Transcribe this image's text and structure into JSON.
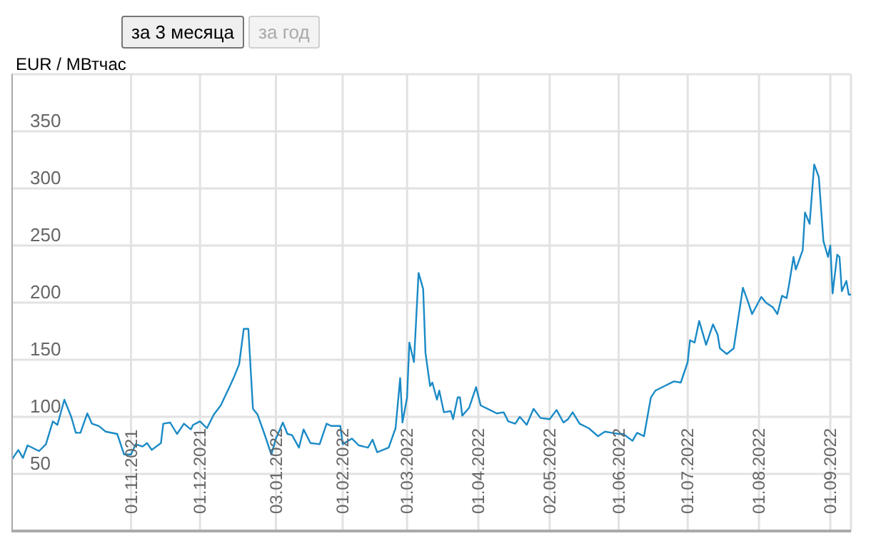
{
  "chart_data": {
    "type": "line",
    "ylabel": "EUR / МВтчас",
    "annotations": [
      "за 3 месяца",
      "за год"
    ],
    "x": [
      "2021-09-10",
      "2021-09-13",
      "2021-09-15",
      "2021-09-17",
      "2021-09-22",
      "2021-09-25",
      "2021-09-28",
      "2021-09-30",
      "2021-10-03",
      "2021-10-06",
      "2021-10-08",
      "2021-10-10",
      "2021-10-13",
      "2021-10-15",
      "2021-10-18",
      "2021-10-21",
      "2021-10-26",
      "2021-10-29",
      "2021-11-01",
      "2021-11-03",
      "2021-11-06",
      "2021-11-08",
      "2021-11-10",
      "2021-11-14",
      "2021-11-15",
      "2021-11-18",
      "2021-11-21",
      "2021-11-24",
      "2021-11-27",
      "2021-11-28",
      "2021-12-01",
      "2021-12-04",
      "2021-12-07",
      "2021-12-10",
      "2021-12-14",
      "2021-12-16",
      "2021-12-18",
      "2021-12-20",
      "2021-12-22",
      "2021-12-24",
      "2021-12-26",
      "2021-12-29",
      "2022-01-01",
      "2022-01-03",
      "2022-01-06",
      "2022-01-08",
      "2022-01-10",
      "2022-01-13",
      "2022-01-15",
      "2022-01-18",
      "2022-01-22",
      "2022-01-25",
      "2022-01-27",
      "2022-01-31",
      "2022-02-01",
      "2022-02-05",
      "2022-02-08",
      "2022-02-12",
      "2022-02-14",
      "2022-02-16",
      "2022-02-21",
      "2022-02-24",
      "2022-02-26",
      "2022-02-27",
      "2022-03-01",
      "2022-03-02",
      "2022-03-04",
      "2022-03-06",
      "2022-03-08",
      "2022-03-09",
      "2022-03-11",
      "2022-03-12",
      "2022-03-14",
      "2022-03-15",
      "2022-03-17",
      "2022-03-20",
      "2022-03-21",
      "2022-03-23",
      "2022-03-24",
      "2022-03-25",
      "2022-03-28",
      "2022-03-31",
      "2022-04-02",
      "2022-04-06",
      "2022-04-09",
      "2022-04-12",
      "2022-04-14",
      "2022-04-17",
      "2022-04-19",
      "2022-04-22",
      "2022-04-25",
      "2022-04-28",
      "2022-05-02",
      "2022-05-05",
      "2022-05-08",
      "2022-05-10",
      "2022-05-12",
      "2022-05-15",
      "2022-05-19",
      "2022-05-23",
      "2022-05-26",
      "2022-05-29",
      "2022-06-01",
      "2022-06-03",
      "2022-06-07",
      "2022-06-09",
      "2022-06-12",
      "2022-06-15",
      "2022-06-17",
      "2022-06-21",
      "2022-06-25",
      "2022-06-28",
      "2022-07-01",
      "2022-07-02",
      "2022-07-04",
      "2022-07-06",
      "2022-07-09",
      "2022-07-12",
      "2022-07-14",
      "2022-07-15",
      "2022-07-18",
      "2022-07-21",
      "2022-07-25",
      "2022-07-27",
      "2022-07-29",
      "2022-08-02",
      "2022-08-04",
      "2022-08-07",
      "2022-08-09",
      "2022-08-11",
      "2022-08-13",
      "2022-08-14",
      "2022-08-16",
      "2022-08-17",
      "2022-08-20",
      "2022-08-21",
      "2022-08-23",
      "2022-08-25",
      "2022-08-27",
      "2022-08-29",
      "2022-08-31",
      "2022-09-01",
      "2022-09-02",
      "2022-09-04",
      "2022-09-05",
      "2022-09-06",
      "2022-09-08",
      "2022-09-09",
      "2022-09-10"
    ],
    "series": [
      {
        "color": "#1a8ac6",
        "values": [
          62,
          71,
          64,
          75,
          70,
          76,
          96,
          93,
          115,
          100,
          86,
          86,
          103,
          94,
          92,
          87,
          85,
          67,
          67,
          76,
          74,
          77,
          71,
          77,
          94,
          95,
          85,
          94,
          89,
          93,
          96,
          90,
          102,
          110,
          127,
          136,
          146,
          177,
          177,
          107,
          102,
          85,
          67,
          81,
          95,
          85,
          84,
          73,
          89,
          77,
          76,
          94,
          92,
          92,
          76,
          81,
          75,
          73,
          80,
          69,
          73,
          90,
          134,
          95,
          117,
          165,
          148,
          226,
          212,
          156,
          127,
          130,
          115,
          123,
          104,
          105,
          98,
          117,
          117,
          101,
          108,
          126,
          110,
          106,
          103,
          104,
          96,
          94,
          100,
          93,
          107,
          99,
          98,
          106,
          95,
          98,
          104,
          94,
          90,
          83,
          87,
          86,
          85,
          85,
          79,
          86,
          83,
          117,
          123,
          127,
          131,
          130,
          148,
          167,
          165,
          184,
          163,
          181,
          172,
          160,
          155,
          160,
          213,
          202,
          190,
          205,
          200,
          196,
          190,
          206,
          204,
          215,
          240,
          229,
          246,
          279,
          269,
          321,
          310,
          254,
          240,
          250,
          208,
          242,
          240,
          210,
          219,
          207,
          207
        ]
      }
    ],
    "xlim": [
      "2021-09-10",
      "2022-09-10"
    ],
    "xticks": [
      {
        "value": "2021-11-01",
        "label": "01.11.2021"
      },
      {
        "value": "2021-12-01",
        "label": "01.12.2021"
      },
      {
        "value": "2022-01-03",
        "label": "03.01.2022"
      },
      {
        "value": "2022-02-01",
        "label": "01.02.2022"
      },
      {
        "value": "2022-03-01",
        "label": "01.03.2022"
      },
      {
        "value": "2022-04-01",
        "label": "01.04.2022"
      },
      {
        "value": "2022-05-02",
        "label": "02.05.2022"
      },
      {
        "value": "2022-06-01",
        "label": "01.06.2022"
      },
      {
        "value": "2022-07-01",
        "label": "01.07.2022"
      },
      {
        "value": "2022-08-01",
        "label": "01.08.2022"
      },
      {
        "value": "2022-09-01",
        "label": "01.09.2022"
      }
    ],
    "ylim": [
      0,
      400
    ],
    "yticks": [
      50,
      100,
      150,
      200,
      250,
      300,
      350,
      {
        "value": 400,
        "label": null
      }
    ],
    "grid": true,
    "marker": "none",
    "line_style": "solid"
  }
}
